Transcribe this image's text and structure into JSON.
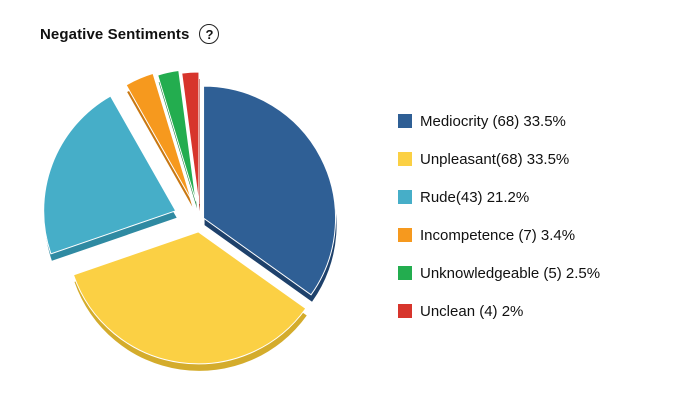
{
  "header": {
    "title": "Negative Sentiments",
    "help_glyph": "?"
  },
  "icons": {
    "help": "help-circle-icon"
  },
  "legend": [
    {
      "text": "Mediocrity (68) 33.5%",
      "color": "#2f5f95"
    },
    {
      "text": "Unpleasant(68) 33.5%",
      "color": "#fbd044"
    },
    {
      "text": "Rude(43) 21.2%",
      "color": "#46aec8"
    },
    {
      "text": "Incompetence (7) 3.4%",
      "color": "#f6991e"
    },
    {
      "text": "Unknowledgeable (5) 2.5%",
      "color": "#23ad4f"
    },
    {
      "text": "Unclean (4) 2%",
      "color": "#d7352c"
    }
  ],
  "chart_data": {
    "type": "pie",
    "title": "Negative Sentiments",
    "exploded": true,
    "legend_position": "right",
    "slices": [
      {
        "label": "Mediocrity",
        "count": 68,
        "percent": 33.5,
        "color": "#2f5f95",
        "shade": "#1e416b"
      },
      {
        "label": "Unpleasant",
        "count": 68,
        "percent": 33.5,
        "color": "#fbd044",
        "shade": "#d4ac2c"
      },
      {
        "label": "Rude",
        "count": 43,
        "percent": 21.2,
        "color": "#46aec8",
        "shade": "#2f8aa2"
      },
      {
        "label": "Incompetence",
        "count": 7,
        "percent": 3.4,
        "color": "#f6991e",
        "shade": "#c97812"
      },
      {
        "label": "Unknowledgeable",
        "count": 5,
        "percent": 2.5,
        "color": "#23ad4f",
        "shade": "#178239"
      },
      {
        "label": "Unclean",
        "count": 4,
        "percent": 2,
        "color": "#d7352c",
        "shade": "#a8241d"
      }
    ]
  }
}
